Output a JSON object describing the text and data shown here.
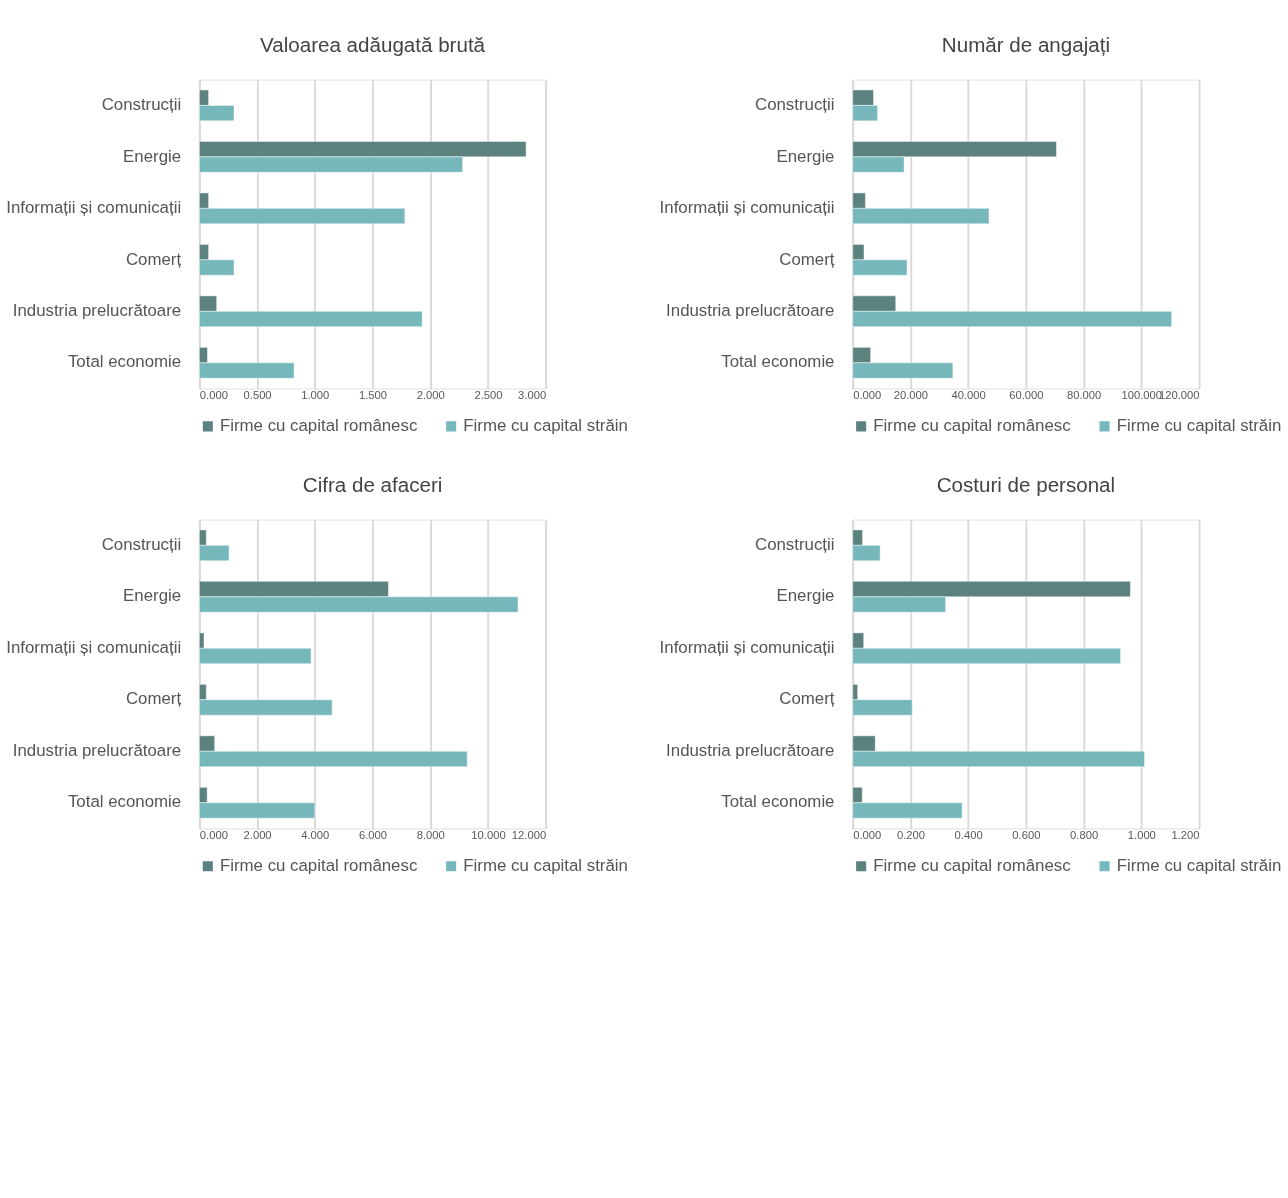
{
  "chart_data": [
    {
      "type": "bar",
      "orientation": "horizontal",
      "title": "Valoarea adăugată brută",
      "categories": [
        "Construcții",
        "Energie",
        "Informații și comunicații",
        "Comerț",
        "Industria prelucrătoare",
        "Total economie"
      ],
      "series": [
        {
          "name": "Firme cu capital românesc",
          "color": "#5b827e",
          "values": [
            0.08,
            2.83,
            0.08,
            0.08,
            0.15,
            0.07
          ]
        },
        {
          "name": "Firme cu capital străin",
          "color": "#75b7bb",
          "values": [
            0.3,
            2.28,
            1.78,
            0.3,
            1.93,
            0.82
          ]
        }
      ],
      "xlim": [
        0,
        3
      ],
      "xticks": [
        {
          "value": 0,
          "label": "0.000"
        },
        {
          "value": 0.5,
          "label": "0.500"
        },
        {
          "value": 1,
          "label": "1.000"
        },
        {
          "value": 1.5,
          "label": "1.500"
        },
        {
          "value": 2,
          "label": "2.000"
        },
        {
          "value": 2.5,
          "label": "2.500"
        },
        {
          "value": 3,
          "label": "3.000"
        }
      ],
      "grid": "x",
      "legend": "bottom"
    },
    {
      "type": "bar",
      "orientation": "horizontal",
      "title": "Număr de angajați",
      "categories": [
        "Construcții",
        "Energie",
        "Informații și comunicații",
        "Comerț",
        "Industria prelucrătoare",
        "Total economie"
      ],
      "series": [
        {
          "name": "Firme cu capital românesc",
          "color": "#5b827e",
          "values": [
            7.2,
            70.6,
            4.4,
            3.9,
            14.9,
            6.2
          ]
        },
        {
          "name": "Firme cu capital străin",
          "color": "#75b7bb",
          "values": [
            8.6,
            17.8,
            47.2,
            18.8,
            110.5,
            34.7
          ]
        }
      ],
      "xlim": [
        0,
        120
      ],
      "xticks": [
        {
          "value": 0,
          "label": "0.000"
        },
        {
          "value": 20,
          "label": "20.000"
        },
        {
          "value": 40,
          "label": "40.000"
        },
        {
          "value": 60,
          "label": "60.000"
        },
        {
          "value": 80,
          "label": "80.000"
        },
        {
          "value": 100,
          "label": "100.000"
        },
        {
          "value": 120,
          "label": "120.000"
        }
      ],
      "grid": "x",
      "legend": "bottom"
    },
    {
      "type": "bar",
      "orientation": "horizontal",
      "title": "Cifra de afaceri",
      "categories": [
        "Construcții",
        "Energie",
        "Informații și comunicații",
        "Comerț",
        "Industria prelucrătoare",
        "Total economie"
      ],
      "series": [
        {
          "name": "Firme cu capital românesc",
          "color": "#5b827e",
          "values": [
            0.24,
            6.55,
            0.16,
            0.24,
            0.53,
            0.27
          ]
        },
        {
          "name": "Firme cu capital străin",
          "color": "#75b7bb",
          "values": [
            1.03,
            11.04,
            3.87,
            4.6,
            9.28,
            4.0
          ]
        }
      ],
      "xlim": [
        0,
        12
      ],
      "xticks": [
        {
          "value": 0,
          "label": "0.000"
        },
        {
          "value": 2,
          "label": "2.000"
        },
        {
          "value": 4,
          "label": "4.000"
        },
        {
          "value": 6,
          "label": "6.000"
        },
        {
          "value": 8,
          "label": "8.000"
        },
        {
          "value": 10,
          "label": "10.000"
        },
        {
          "value": 12,
          "label": "12.000"
        }
      ],
      "grid": "x",
      "legend": "bottom"
    },
    {
      "type": "bar",
      "orientation": "horizontal",
      "title": "Costuri de personal",
      "categories": [
        "Construcții",
        "Energie",
        "Informații și comunicații",
        "Comerț",
        "Industria prelucrătoare",
        "Total economie"
      ],
      "series": [
        {
          "name": "Firme cu capital românesc",
          "color": "#5b827e",
          "values": [
            0.034,
            0.962,
            0.038,
            0.017,
            0.078,
            0.033
          ]
        },
        {
          "name": "Firme cu capital străin",
          "color": "#75b7bb",
          "values": [
            0.095,
            0.322,
            0.928,
            0.206,
            1.011,
            0.379
          ]
        }
      ],
      "xlim": [
        0,
        1.2
      ],
      "xticks": [
        {
          "value": 0,
          "label": "0.000"
        },
        {
          "value": 0.2,
          "label": "0.200"
        },
        {
          "value": 0.4,
          "label": "0.400"
        },
        {
          "value": 0.6,
          "label": "0.600"
        },
        {
          "value": 0.8,
          "label": "0.800"
        },
        {
          "value": 1,
          "label": "1.000"
        },
        {
          "value": 1.2,
          "label": "1.200"
        }
      ],
      "grid": "x",
      "legend": "bottom"
    }
  ]
}
